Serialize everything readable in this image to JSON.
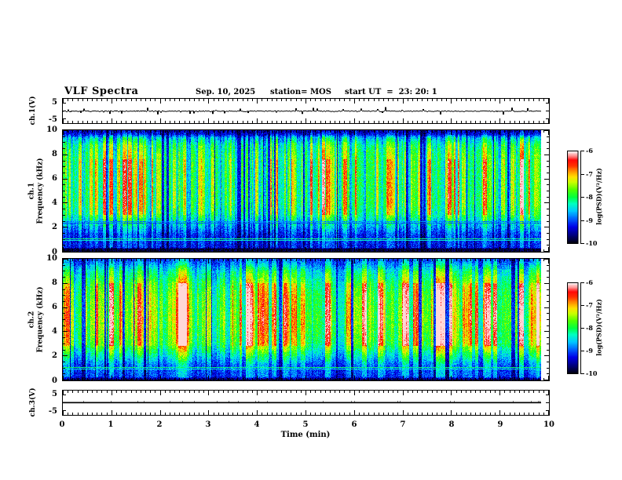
{
  "header": {
    "title": "VLF Spectra",
    "date": "Sep. 10, 2025",
    "station": "station= MOS",
    "start_ut": "start UT  =  23: 20: 1"
  },
  "chart_data": {
    "type": "heatmap",
    "title": "VLF Spectra",
    "x_axis": {
      "label": "Time (min)",
      "min": 0,
      "max": 10,
      "major_tick_labels": [
        "0",
        "1",
        "2",
        "3",
        "4",
        "5",
        "6",
        "7",
        "8",
        "9",
        "10"
      ],
      "minor_step": 0.1,
      "data_end_fraction": 0.985
    },
    "panels": [
      {
        "id": "ch1-waveform",
        "kind": "waveform",
        "ylabel": "ch.1(V)",
        "ylim": [
          -7.5,
          7.5
        ],
        "ytick_values": [
          5,
          0,
          -5
        ],
        "ytick_labels": [
          "5",
          "-5"
        ],
        "ytick_label_values": [
          5,
          -5
        ],
        "style": "noisy",
        "baseline": 0,
        "seed": 5
      },
      {
        "id": "ch1-spectrogram",
        "kind": "spectrogram",
        "ylabel_lines": [
          "ch.1",
          "Frequency (kHz)"
        ],
        "ylim": [
          0,
          10
        ],
        "ytick_labels": [
          "10",
          "8",
          "6",
          "4",
          "2",
          "0"
        ],
        "ytick_label_values": [
          10,
          8,
          6,
          4,
          2,
          0
        ],
        "yminor_step": 0.5,
        "freq_profile": [
          [
            0,
            0.03
          ],
          [
            0.22,
            0.05
          ],
          [
            0.3,
            0.24
          ],
          [
            1.4,
            0.27
          ],
          [
            2.1,
            0.4
          ],
          [
            3,
            0.56
          ],
          [
            4,
            0.62
          ],
          [
            8,
            0.62
          ],
          [
            8.8,
            0.56
          ],
          [
            9.4,
            0.42
          ],
          [
            9.7,
            0.22
          ],
          [
            10,
            0.16
          ]
        ],
        "core_band": [
          3,
          7.6
        ],
        "core_gain": 0.45,
        "stripe_scale": 1,
        "hlines": [
          [
            1.05,
            0.46
          ],
          [
            0.9,
            0.4
          ],
          [
            2.5,
            0.3
          ],
          [
            2.33,
            0.26
          ]
        ],
        "seed": 11
      },
      {
        "id": "ch2-spectrogram",
        "kind": "spectrogram",
        "ylabel_lines": [
          "ch.2",
          "Frequency (kHz)"
        ],
        "ylim": [
          0,
          10
        ],
        "ytick_labels": [
          "10",
          "8",
          "6",
          "4",
          "2",
          "0"
        ],
        "ytick_label_values": [
          10,
          8,
          6,
          4,
          2,
          0
        ],
        "yminor_step": 0.5,
        "freq_profile": [
          [
            0,
            0.04
          ],
          [
            0.28,
            0.28
          ],
          [
            1.2,
            0.32
          ],
          [
            2,
            0.48
          ],
          [
            3,
            0.66
          ],
          [
            5,
            0.72
          ],
          [
            7,
            0.68
          ],
          [
            8,
            0.62
          ],
          [
            9,
            0.5
          ],
          [
            9.6,
            0.36
          ],
          [
            10,
            0.28
          ]
        ],
        "core_band": [
          2.8,
          8
        ],
        "core_gain": 0.55,
        "stripe_scale": 1.6,
        "hlines": [
          [
            1.05,
            0.47
          ],
          [
            0.88,
            0.4
          ]
        ],
        "seed": 77
      },
      {
        "id": "ch3-waveform",
        "kind": "waveform",
        "ylabel": "ch.3(V)",
        "ylim": [
          -7.5,
          7.5
        ],
        "ytick_values": [
          5,
          0,
          -5
        ],
        "ytick_labels": [
          "5",
          "-5"
        ],
        "ytick_label_values": [
          5,
          -5
        ],
        "style": "flat",
        "baseline": 0,
        "seed": 9
      }
    ],
    "colorbars": [
      {
        "tick_labels": [
          "-6",
          "-7",
          "-8",
          "-9",
          "-10"
        ],
        "label": "log(PSD)(V²/Hz)"
      },
      {
        "tick_labels": [
          "-6",
          "-7",
          "-8",
          "-9",
          "-10"
        ],
        "label": "log(PSD)(V²/Hz)"
      }
    ],
    "colormap": [
      [
        0,
        "#000008"
      ],
      [
        0.08,
        "#000070"
      ],
      [
        0.18,
        "#0000e8"
      ],
      [
        0.27,
        "#0064ff"
      ],
      [
        0.35,
        "#00c8ff"
      ],
      [
        0.43,
        "#00ffc0"
      ],
      [
        0.5,
        "#00ff40"
      ],
      [
        0.58,
        "#50ff00"
      ],
      [
        0.66,
        "#c8ff00"
      ],
      [
        0.72,
        "#ffe000"
      ],
      [
        0.78,
        "#ff9000"
      ],
      [
        0.84,
        "#ff3000"
      ],
      [
        0.9,
        "#ff0808"
      ],
      [
        0.95,
        "#ff9898"
      ],
      [
        1,
        "#ffffff"
      ]
    ]
  },
  "colors": {
    "frame": "#000000",
    "background": "#ffffff",
    "text": "#000000"
  }
}
